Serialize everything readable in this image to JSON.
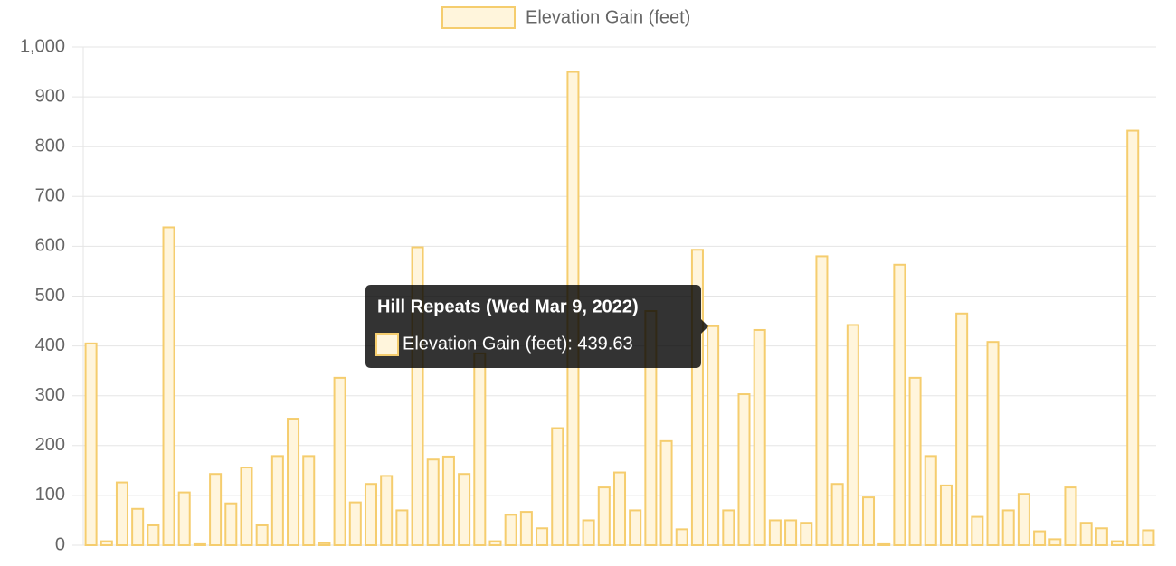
{
  "chart_data": {
    "type": "bar",
    "categories": [
      null,
      null,
      null,
      null,
      null,
      null,
      null,
      null,
      null,
      null,
      null,
      null,
      null,
      null,
      null,
      null,
      null,
      null,
      null,
      null,
      null,
      null,
      null,
      null,
      null,
      null,
      null,
      null,
      null,
      null,
      null,
      null,
      null,
      null,
      null,
      null,
      null,
      null,
      null,
      null,
      null,
      null,
      null,
      null,
      null,
      null,
      null,
      null,
      null,
      null,
      null,
      null,
      null,
      null,
      null,
      null,
      null,
      null,
      null,
      null,
      null,
      null,
      null,
      null,
      null,
      null,
      null,
      null,
      null
    ],
    "series": [
      {
        "name": "Elevation Gain (feet)",
        "color": "#f5cd6e",
        "fill": "#fff5dc",
        "values": [
          405,
          8,
          126,
          73,
          40,
          638,
          106,
          2,
          143,
          84,
          156,
          40,
          179,
          254,
          179,
          4,
          336,
          86,
          123,
          139,
          70,
          598,
          172,
          178,
          143,
          385,
          8,
          61,
          67,
          34,
          235,
          950,
          50,
          116,
          146,
          70,
          470,
          209,
          32,
          593,
          439.63,
          70,
          303,
          432,
          50,
          50,
          45,
          580,
          123,
          442,
          96,
          2,
          563,
          336,
          179,
          120,
          465,
          57,
          408,
          70,
          103,
          28,
          12,
          116,
          45,
          34,
          8,
          832,
          30
        ]
      }
    ],
    "ylim": [
      0,
      1000
    ],
    "yticks": [
      0,
      100,
      200,
      300,
      400,
      500,
      600,
      700,
      800,
      900,
      {
        "value": 1000,
        "label": "1,000"
      }
    ],
    "grid": true,
    "legend": "top",
    "tooltip": {
      "title": "Hill Repeats (Wed Mar 9, 2022)",
      "label": "Elevation Gain (feet): 439.63"
    }
  }
}
